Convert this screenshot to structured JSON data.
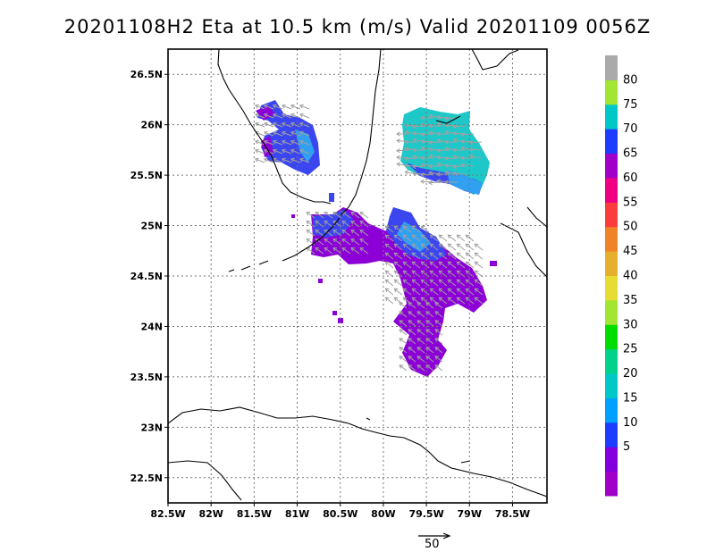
{
  "title": "20201108H2 Eta at 10.5 km (m/s) Valid 20201109 0056Z",
  "map": {
    "lon_range": [
      -82.5,
      -78.1
    ],
    "lat_range": [
      22.25,
      26.75
    ],
    "lon_ticks": [
      {
        "v": -82.5,
        "label": "82.5W"
      },
      {
        "v": -82,
        "label": "82W"
      },
      {
        "v": -81.5,
        "label": "81.5W"
      },
      {
        "v": -81,
        "label": "81W"
      },
      {
        "v": -80.5,
        "label": "80.5W"
      },
      {
        "v": -80,
        "label": "80W"
      },
      {
        "v": -79.5,
        "label": "79.5W"
      },
      {
        "v": -79,
        "label": "79W"
      },
      {
        "v": -78.5,
        "label": "78.5W"
      }
    ],
    "lat_ticks": [
      {
        "v": 26.5,
        "label": "26.5N"
      },
      {
        "v": 26,
        "label": "26N"
      },
      {
        "v": 25.5,
        "label": "25.5N"
      },
      {
        "v": 25,
        "label": "25N"
      },
      {
        "v": 24.5,
        "label": "24.5N"
      },
      {
        "v": 24,
        "label": "24N"
      },
      {
        "v": 23.5,
        "label": "23.5N"
      },
      {
        "v": 23,
        "label": "23N"
      },
      {
        "v": 22.5,
        "label": "22.5N"
      }
    ],
    "grid": "dotted"
  },
  "colorbar": {
    "levels": [
      {
        "label": "",
        "color": "#a000c8"
      },
      {
        "label": "5",
        "color": "#8200dc"
      },
      {
        "label": "10",
        "color": "#1e3cff"
      },
      {
        "label": "15",
        "color": "#00a0ff"
      },
      {
        "label": "20",
        "color": "#00c8c8"
      },
      {
        "label": "25",
        "color": "#00d28c"
      },
      {
        "label": "30",
        "color": "#00dc00"
      },
      {
        "label": "35",
        "color": "#a0e632"
      },
      {
        "label": "40",
        "color": "#e6dc32"
      },
      {
        "label": "45",
        "color": "#e6af2d"
      },
      {
        "label": "50",
        "color": "#f08228"
      },
      {
        "label": "55",
        "color": "#fa3c3c"
      },
      {
        "label": "60",
        "color": "#f00082"
      },
      {
        "label": "65",
        "color": "#a000c8"
      },
      {
        "label": "70",
        "color": "#1e3cff"
      },
      {
        "label": "75",
        "color": "#00c8c8"
      },
      {
        "label": "80",
        "color": "#a0e632"
      },
      {
        "label": "",
        "color": "#aaaaaa"
      }
    ]
  },
  "vector_reference": {
    "label": "50"
  },
  "colors": {
    "purple": "#8c00d7",
    "blue": "#3c46f0",
    "cyan": "#1ec8c8",
    "lightblue": "#32a0f0",
    "arrow": "#a0a0a0"
  }
}
